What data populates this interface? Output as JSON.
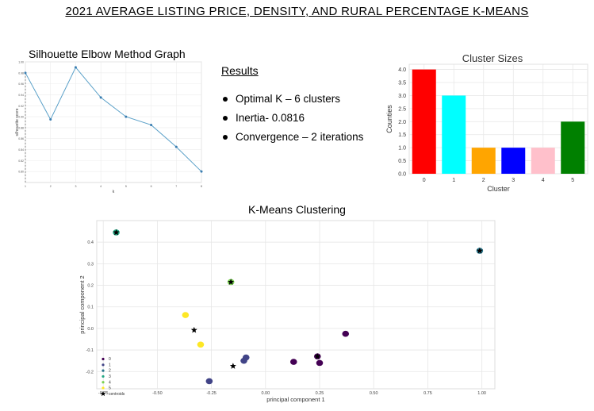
{
  "main_title": "2021 AVERAGE LISTING PRICE, DENSITY, AND RURAL PERCENTAGE K-MEANS",
  "results": {
    "title": "Results",
    "items": [
      "Optimal K – 6 clusters",
      "Inertia- 0.0816",
      "Convergence – 2 iterations"
    ]
  },
  "chart_data": [
    {
      "type": "line",
      "title": "Silhouette Elbow Method Graph",
      "xlabel": "k",
      "ylabel": "silhouette score",
      "x": [
        1,
        2,
        3,
        4,
        5,
        6,
        7,
        8
      ],
      "values": [
        0.98,
        0.895,
        0.99,
        0.935,
        0.9,
        0.885,
        0.845,
        0.8
      ],
      "xlim": [
        1,
        8
      ],
      "ylim": [
        0.78,
        1.0
      ],
      "grid": true,
      "line_color": "#5aa0c8"
    },
    {
      "type": "bar",
      "title": "Cluster Sizes",
      "xlabel": "Cluster",
      "ylabel": "Counties",
      "categories": [
        "0",
        "1",
        "2",
        "3",
        "4",
        "5"
      ],
      "values": [
        4.0,
        3.0,
        1.0,
        1.0,
        1.0,
        2.0
      ],
      "colors": [
        "#ff0000",
        "#00ffff",
        "#ffa500",
        "#0000ff",
        "#ffc0cb",
        "#008000"
      ],
      "ylim": [
        0,
        4.2
      ],
      "yticks": [
        "0.0",
        "0.5",
        "1.0",
        "1.5",
        "2.0",
        "2.5",
        "3.0",
        "3.5",
        "4.0"
      ],
      "grid": true
    },
    {
      "type": "scatter",
      "title": "K-Means Clustering",
      "xlabel": "principal component 1",
      "ylabel": "principal component 2",
      "xlim": [
        -0.78,
        1.06
      ],
      "ylim": [
        -0.28,
        0.5
      ],
      "xticks": [
        "-0.75",
        "-0.50",
        "-0.25",
        "0.00",
        "0.25",
        "0.50",
        "0.75",
        "1.00"
      ],
      "yticks": [
        "-0.2",
        "-0.1",
        "0.0",
        "0.1",
        "0.2",
        "0.3",
        "0.4"
      ],
      "grid": true,
      "legend_position": "lower-left",
      "legend": [
        "0",
        "1",
        "2",
        "3",
        "4",
        "5",
        "centroids"
      ],
      "series": [
        {
          "name": "0",
          "color": "#440154",
          "points": [
            [
              0.37,
              -0.025
            ],
            [
              0.24,
              -0.13
            ],
            [
              0.25,
              -0.16
            ],
            [
              0.13,
              -0.155
            ]
          ]
        },
        {
          "name": "1",
          "color": "#414487",
          "points": [
            [
              -0.09,
              -0.135
            ],
            [
              -0.1,
              -0.15
            ],
            [
              -0.26,
              -0.245
            ]
          ]
        },
        {
          "name": "2",
          "color": "#2a788e",
          "points": [
            [
              0.99,
              0.36
            ]
          ]
        },
        {
          "name": "3",
          "color": "#22a884",
          "points": [
            [
              -0.69,
              0.445
            ]
          ]
        },
        {
          "name": "4",
          "color": "#7ad151",
          "points": [
            [
              -0.16,
              0.215
            ]
          ]
        },
        {
          "name": "5",
          "color": "#fde725",
          "points": [
            [
              -0.37,
              0.062
            ],
            [
              -0.3,
              -0.075
            ]
          ]
        },
        {
          "name": "centroids",
          "color": "#000000",
          "marker": "star",
          "points": [
            [
              0.24,
              -0.13
            ],
            [
              -0.15,
              -0.175
            ],
            [
              0.99,
              0.36
            ],
            [
              -0.69,
              0.445
            ],
            [
              -0.16,
              0.215
            ],
            [
              -0.33,
              -0.008
            ]
          ]
        }
      ]
    }
  ]
}
